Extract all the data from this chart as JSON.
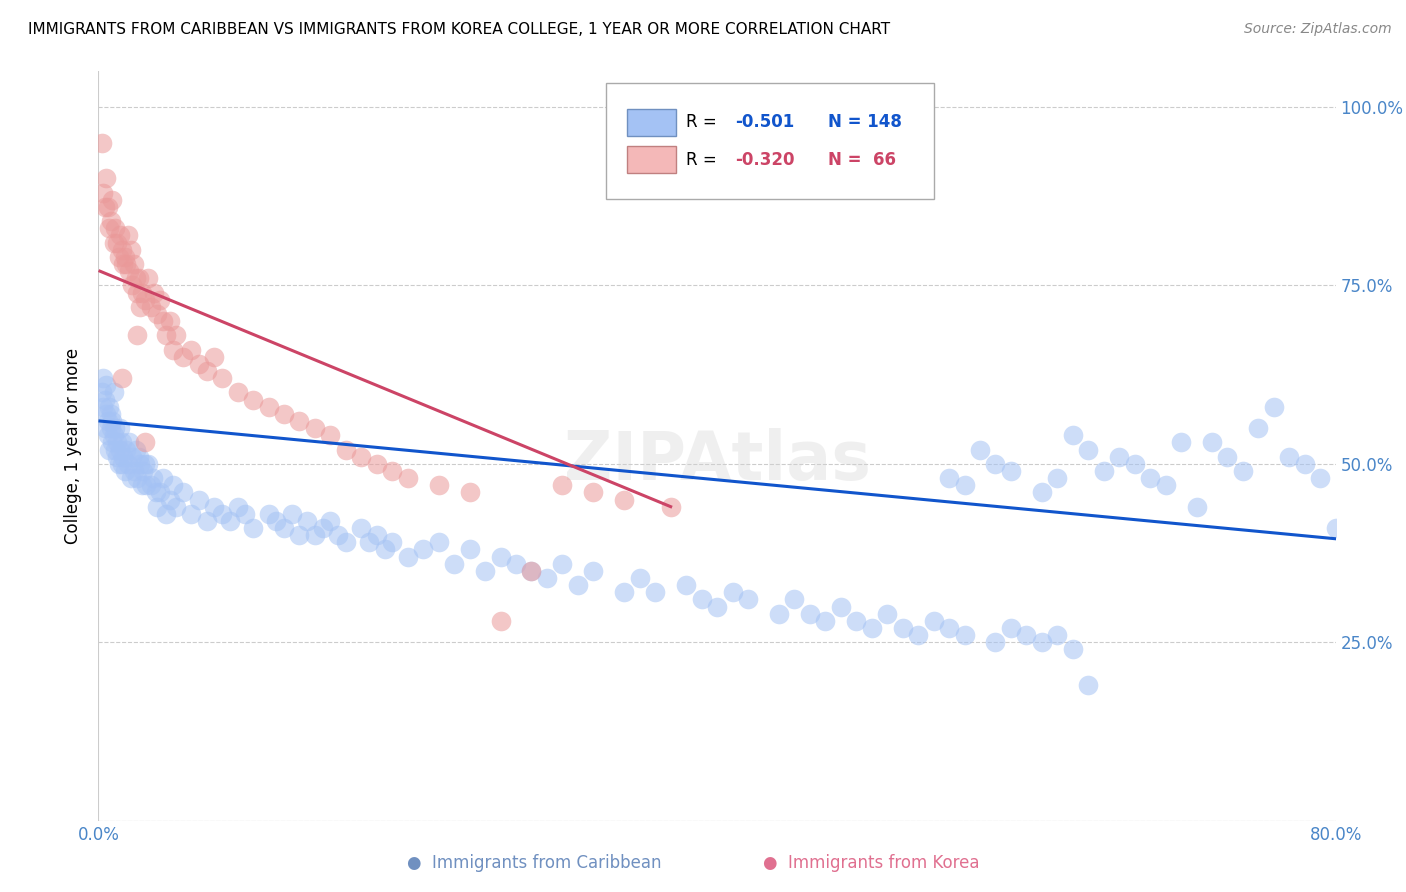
{
  "title": "IMMIGRANTS FROM CARIBBEAN VS IMMIGRANTS FROM KOREA COLLEGE, 1 YEAR OR MORE CORRELATION CHART",
  "source": "Source: ZipAtlas.com",
  "ylabel": "College, 1 year or more",
  "xlim": [
    0.0,
    0.8
  ],
  "ylim": [
    0.0,
    1.05
  ],
  "xticks": [
    0.0,
    0.1,
    0.2,
    0.3,
    0.4,
    0.5,
    0.6,
    0.7,
    0.8
  ],
  "xticklabels": [
    "0.0%",
    "",
    "",
    "",
    "",
    "",
    "",
    "",
    "80.0%"
  ],
  "yticks": [
    0.0,
    0.25,
    0.5,
    0.75,
    1.0
  ],
  "yticklabels": [
    "",
    "25.0%",
    "50.0%",
    "75.0%",
    "100.0%"
  ],
  "blue_color": "#a4c2f4",
  "pink_color": "#ea9999",
  "blue_line_color": "#1155cc",
  "pink_line_color": "#cc4466",
  "blue_line_x": [
    0.001,
    0.8
  ],
  "blue_line_y": [
    0.56,
    0.395
  ],
  "pink_line_x": [
    0.001,
    0.37
  ],
  "pink_line_y": [
    0.77,
    0.44
  ],
  "caribbean_x": [
    0.002,
    0.003,
    0.003,
    0.004,
    0.004,
    0.005,
    0.005,
    0.006,
    0.006,
    0.007,
    0.007,
    0.008,
    0.008,
    0.009,
    0.009,
    0.01,
    0.01,
    0.011,
    0.011,
    0.012,
    0.012,
    0.013,
    0.014,
    0.014,
    0.015,
    0.015,
    0.016,
    0.017,
    0.018,
    0.019,
    0.02,
    0.021,
    0.022,
    0.023,
    0.024,
    0.025,
    0.026,
    0.027,
    0.028,
    0.029,
    0.03,
    0.031,
    0.032,
    0.034,
    0.035,
    0.037,
    0.038,
    0.04,
    0.042,
    0.044,
    0.046,
    0.048,
    0.05,
    0.055,
    0.06,
    0.065,
    0.07,
    0.075,
    0.08,
    0.085,
    0.09,
    0.095,
    0.1,
    0.11,
    0.115,
    0.12,
    0.125,
    0.13,
    0.135,
    0.14,
    0.145,
    0.15,
    0.155,
    0.16,
    0.17,
    0.175,
    0.18,
    0.185,
    0.19,
    0.2,
    0.21,
    0.22,
    0.23,
    0.24,
    0.25,
    0.26,
    0.27,
    0.28,
    0.29,
    0.3,
    0.31,
    0.32,
    0.34,
    0.35,
    0.36,
    0.38,
    0.39,
    0.4,
    0.41,
    0.42,
    0.44,
    0.45,
    0.46,
    0.47,
    0.48,
    0.49,
    0.5,
    0.51,
    0.52,
    0.53,
    0.54,
    0.55,
    0.56,
    0.58,
    0.59,
    0.6,
    0.61,
    0.62,
    0.63,
    0.64,
    0.65,
    0.66,
    0.67,
    0.68,
    0.69,
    0.7,
    0.71,
    0.72,
    0.73,
    0.74,
    0.75,
    0.76,
    0.77,
    0.78,
    0.79,
    0.8,
    0.55,
    0.57,
    0.56,
    0.58,
    0.59,
    0.61,
    0.62,
    0.63,
    0.64
  ],
  "caribbean_y": [
    0.6,
    0.58,
    0.62,
    0.55,
    0.59,
    0.57,
    0.61,
    0.54,
    0.56,
    0.52,
    0.58,
    0.55,
    0.57,
    0.53,
    0.56,
    0.54,
    0.6,
    0.52,
    0.55,
    0.51,
    0.53,
    0.5,
    0.52,
    0.55,
    0.5,
    0.53,
    0.51,
    0.49,
    0.52,
    0.5,
    0.53,
    0.48,
    0.51,
    0.49,
    0.52,
    0.48,
    0.51,
    0.5,
    0.47,
    0.49,
    0.5,
    0.47,
    0.5,
    0.47,
    0.48,
    0.46,
    0.44,
    0.46,
    0.48,
    0.43,
    0.45,
    0.47,
    0.44,
    0.46,
    0.43,
    0.45,
    0.42,
    0.44,
    0.43,
    0.42,
    0.44,
    0.43,
    0.41,
    0.43,
    0.42,
    0.41,
    0.43,
    0.4,
    0.42,
    0.4,
    0.41,
    0.42,
    0.4,
    0.39,
    0.41,
    0.39,
    0.4,
    0.38,
    0.39,
    0.37,
    0.38,
    0.39,
    0.36,
    0.38,
    0.35,
    0.37,
    0.36,
    0.35,
    0.34,
    0.36,
    0.33,
    0.35,
    0.32,
    0.34,
    0.32,
    0.33,
    0.31,
    0.3,
    0.32,
    0.31,
    0.29,
    0.31,
    0.29,
    0.28,
    0.3,
    0.28,
    0.27,
    0.29,
    0.27,
    0.26,
    0.28,
    0.27,
    0.26,
    0.25,
    0.27,
    0.26,
    0.25,
    0.26,
    0.24,
    0.52,
    0.49,
    0.51,
    0.5,
    0.48,
    0.47,
    0.53,
    0.44,
    0.53,
    0.51,
    0.49,
    0.55,
    0.58,
    0.51,
    0.5,
    0.48,
    0.41,
    0.48,
    0.52,
    0.47,
    0.5,
    0.49,
    0.46,
    0.48,
    0.54,
    0.19
  ],
  "korea_x": [
    0.002,
    0.003,
    0.004,
    0.005,
    0.006,
    0.007,
    0.008,
    0.009,
    0.01,
    0.011,
    0.012,
    0.013,
    0.014,
    0.015,
    0.016,
    0.017,
    0.018,
    0.019,
    0.02,
    0.021,
    0.022,
    0.023,
    0.024,
    0.025,
    0.026,
    0.027,
    0.028,
    0.03,
    0.032,
    0.034,
    0.036,
    0.038,
    0.04,
    0.042,
    0.044,
    0.046,
    0.048,
    0.05,
    0.055,
    0.06,
    0.065,
    0.07,
    0.075,
    0.08,
    0.09,
    0.1,
    0.11,
    0.12,
    0.13,
    0.14,
    0.15,
    0.16,
    0.17,
    0.18,
    0.19,
    0.2,
    0.22,
    0.24,
    0.26,
    0.28,
    0.3,
    0.32,
    0.34,
    0.37,
    0.03,
    0.025,
    0.015
  ],
  "korea_y": [
    0.95,
    0.88,
    0.86,
    0.9,
    0.86,
    0.83,
    0.84,
    0.87,
    0.81,
    0.83,
    0.81,
    0.79,
    0.82,
    0.8,
    0.78,
    0.79,
    0.78,
    0.82,
    0.77,
    0.8,
    0.75,
    0.78,
    0.76,
    0.74,
    0.76,
    0.72,
    0.74,
    0.73,
    0.76,
    0.72,
    0.74,
    0.71,
    0.73,
    0.7,
    0.68,
    0.7,
    0.66,
    0.68,
    0.65,
    0.66,
    0.64,
    0.63,
    0.65,
    0.62,
    0.6,
    0.59,
    0.58,
    0.57,
    0.56,
    0.55,
    0.54,
    0.52,
    0.51,
    0.5,
    0.49,
    0.48,
    0.47,
    0.46,
    0.28,
    0.35,
    0.47,
    0.46,
    0.45,
    0.44,
    0.53,
    0.68,
    0.62
  ]
}
